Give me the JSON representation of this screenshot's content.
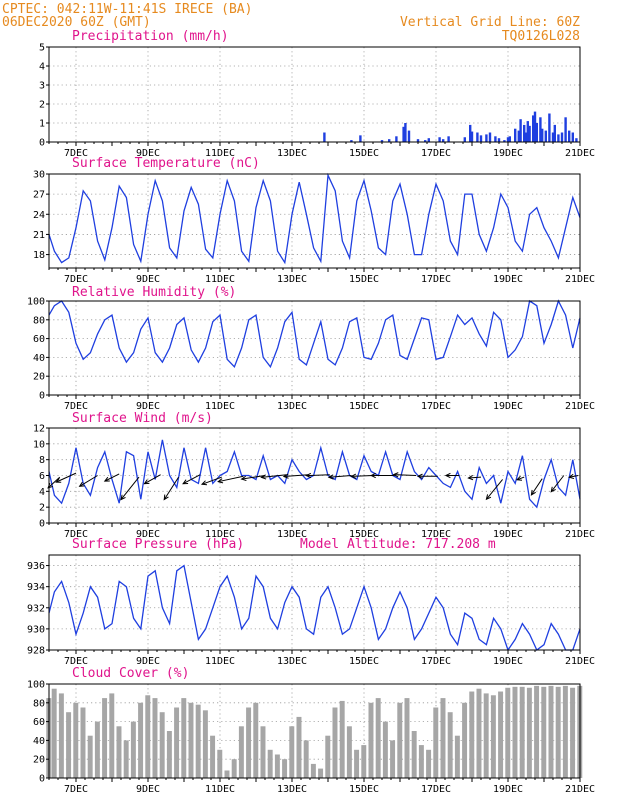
{
  "header": {
    "line1": "CPTEC:  042:11W-11:41S  IRECE (BA)",
    "line2": "06DEC2020 60Z (GMT)",
    "grid_note": "Vertical Grid Line: 60Z",
    "code": "TQ0126L028"
  },
  "colors": {
    "header": "#e68a1f",
    "title": "#e0148c",
    "series": "#1f3fe0",
    "cloud": "#a6a6a6",
    "arrow": "#000000"
  },
  "chart_data": [
    {
      "type": "bar",
      "title": "Precipitation (mm/h)",
      "ylim": [
        0,
        5
      ],
      "yticks": [
        0,
        1,
        2,
        3,
        4,
        5
      ],
      "xlim": [
        6.25,
        21.0
      ],
      "xticks": [
        "7DEC",
        "9DEC",
        "11DEC",
        "13DEC",
        "15DEC",
        "17DEC",
        "19DEC",
        "21DEC"
      ],
      "x": [
        13.9,
        14.65,
        14.9,
        15.5,
        15.7,
        15.9,
        16.1,
        16.15,
        16.25,
        16.5,
        16.7,
        16.8,
        17.1,
        17.2,
        17.35,
        17.8,
        17.95,
        18.0,
        18.15,
        18.25,
        18.4,
        18.5,
        18.65,
        18.75,
        18.9,
        19.0,
        19.05,
        19.2,
        19.3,
        19.35,
        19.45,
        19.5,
        19.55,
        19.6,
        19.7,
        19.75,
        19.8,
        19.9,
        19.95,
        20.05,
        20.15,
        20.25,
        20.3,
        20.4,
        20.5,
        20.6,
        20.7,
        20.8,
        20.9
      ],
      "values": [
        0.5,
        0.1,
        0.35,
        0.1,
        0.15,
        0.3,
        0.8,
        1.0,
        0.6,
        0.15,
        0.1,
        0.2,
        0.25,
        0.15,
        0.3,
        0.25,
        0.9,
        0.55,
        0.5,
        0.35,
        0.4,
        0.5,
        0.3,
        0.2,
        0.1,
        0.25,
        0.3,
        0.7,
        0.6,
        1.2,
        0.9,
        0.5,
        1.1,
        0.85,
        1.4,
        1.6,
        1.0,
        1.3,
        0.7,
        0.6,
        1.5,
        0.5,
        0.9,
        0.4,
        0.5,
        1.3,
        0.6,
        0.5,
        0.2
      ]
    },
    {
      "type": "line",
      "title": "Surface Temperature (nC)",
      "ylim": [
        16,
        30
      ],
      "yticks": [
        18,
        21,
        24,
        27,
        30
      ],
      "xlim": [
        6.25,
        21.0
      ],
      "xticks": [
        "7DEC",
        "9DEC",
        "11DEC",
        "13DEC",
        "15DEC",
        "17DEC",
        "19DEC",
        "21DEC"
      ],
      "x": [
        6.25,
        6.4,
        6.6,
        6.8,
        7.0,
        7.2,
        7.4,
        7.6,
        7.8,
        8.0,
        8.2,
        8.4,
        8.6,
        8.8,
        9.0,
        9.2,
        9.4,
        9.6,
        9.8,
        10.0,
        10.2,
        10.4,
        10.6,
        10.8,
        11.0,
        11.2,
        11.4,
        11.6,
        11.8,
        12.0,
        12.2,
        12.4,
        12.6,
        12.8,
        13.0,
        13.2,
        13.4,
        13.6,
        13.8,
        14.0,
        14.2,
        14.4,
        14.6,
        14.8,
        15.0,
        15.2,
        15.4,
        15.6,
        15.8,
        16.0,
        16.2,
        16.4,
        16.6,
        16.8,
        17.0,
        17.2,
        17.4,
        17.6,
        17.8,
        18.0,
        18.2,
        18.4,
        18.6,
        18.8,
        19.0,
        19.2,
        19.4,
        19.6,
        19.8,
        20.0,
        20.2,
        20.4,
        20.6,
        20.8,
        21.0
      ],
      "values": [
        21.0,
        18.5,
        16.8,
        17.5,
        22.0,
        27.5,
        26.0,
        20.0,
        17.2,
        22.0,
        28.2,
        26.5,
        19.5,
        17.0,
        24.0,
        29.0,
        26.0,
        19.0,
        17.5,
        24.5,
        28.0,
        25.5,
        18.8,
        17.5,
        24.0,
        29.0,
        26.0,
        18.5,
        17.0,
        25.0,
        29.0,
        26.0,
        18.5,
        16.8,
        24.0,
        28.8,
        24.0,
        19.0,
        17.0,
        29.8,
        27.5,
        20.0,
        17.5,
        26.0,
        29.0,
        24.5,
        19.0,
        18.0,
        26.0,
        28.5,
        24.0,
        18.0,
        18.0,
        24.0,
        28.5,
        26.0,
        20.0,
        18.0,
        27.0,
        27.0,
        21.0,
        18.5,
        22.0,
        27.0,
        25.0,
        20.0,
        18.5,
        24.0,
        25.0,
        22.0,
        20.0,
        17.5,
        22.0,
        26.5,
        23.5
      ]
    },
    {
      "type": "line",
      "title": "Relative Humidity (%)",
      "ylim": [
        0,
        100
      ],
      "yticks": [
        0,
        20,
        40,
        60,
        80,
        100
      ],
      "xlim": [
        6.25,
        21.0
      ],
      "xticks": [
        "7DEC",
        "9DEC",
        "11DEC",
        "13DEC",
        "15DEC",
        "17DEC",
        "19DEC",
        "21DEC"
      ],
      "x": [
        6.25,
        6.4,
        6.6,
        6.8,
        7.0,
        7.2,
        7.4,
        7.6,
        7.8,
        8.0,
        8.2,
        8.4,
        8.6,
        8.8,
        9.0,
        9.2,
        9.4,
        9.6,
        9.8,
        10.0,
        10.2,
        10.4,
        10.6,
        10.8,
        11.0,
        11.2,
        11.4,
        11.6,
        11.8,
        12.0,
        12.2,
        12.4,
        12.6,
        12.8,
        13.0,
        13.2,
        13.4,
        13.6,
        13.8,
        14.0,
        14.2,
        14.4,
        14.6,
        14.8,
        15.0,
        15.2,
        15.4,
        15.6,
        15.8,
        16.0,
        16.2,
        16.4,
        16.6,
        16.8,
        17.0,
        17.2,
        17.4,
        17.6,
        17.8,
        18.0,
        18.2,
        18.4,
        18.6,
        18.8,
        19.0,
        19.2,
        19.4,
        19.6,
        19.8,
        20.0,
        20.2,
        20.4,
        20.6,
        20.8,
        21.0
      ],
      "values": [
        85,
        95,
        100,
        88,
        55,
        38,
        45,
        65,
        80,
        85,
        50,
        35,
        45,
        70,
        82,
        45,
        35,
        50,
        75,
        82,
        48,
        35,
        50,
        78,
        85,
        38,
        30,
        50,
        80,
        85,
        40,
        30,
        50,
        78,
        88,
        38,
        32,
        55,
        78,
        38,
        32,
        50,
        78,
        82,
        40,
        38,
        55,
        80,
        85,
        42,
        38,
        60,
        82,
        80,
        38,
        40,
        62,
        85,
        75,
        82,
        65,
        52,
        88,
        80,
        40,
        48,
        62,
        100,
        95,
        55,
        75,
        100,
        85,
        50,
        82
      ]
    },
    {
      "type": "line",
      "title": "Surface Wind (m/s)",
      "ylim": [
        0,
        12
      ],
      "yticks": [
        0,
        2,
        4,
        6,
        8,
        10,
        12
      ],
      "xlim": [
        6.25,
        21.0
      ],
      "xticks": [
        "7DEC",
        "9DEC",
        "11DEC",
        "13DEC",
        "15DEC",
        "17DEC",
        "19DEC",
        "21DEC"
      ],
      "x": [
        6.25,
        6.4,
        6.6,
        6.8,
        7.0,
        7.2,
        7.4,
        7.6,
        7.8,
        8.0,
        8.2,
        8.4,
        8.6,
        8.8,
        9.0,
        9.2,
        9.4,
        9.6,
        9.8,
        10.0,
        10.2,
        10.4,
        10.6,
        10.8,
        11.0,
        11.2,
        11.4,
        11.6,
        11.8,
        12.0,
        12.2,
        12.4,
        12.6,
        12.8,
        13.0,
        13.2,
        13.4,
        13.6,
        13.8,
        14.0,
        14.2,
        14.4,
        14.6,
        14.8,
        15.0,
        15.2,
        15.4,
        15.6,
        15.8,
        16.0,
        16.2,
        16.4,
        16.6,
        16.8,
        17.0,
        17.2,
        17.4,
        17.6,
        17.8,
        18.0,
        18.2,
        18.4,
        18.6,
        18.8,
        19.0,
        19.2,
        19.4,
        19.6,
        19.8,
        20.0,
        20.2,
        20.4,
        20.6,
        20.8,
        21.0
      ],
      "values": [
        6.5,
        3.5,
        2.5,
        5.0,
        9.5,
        5.0,
        3.5,
        7.0,
        9.0,
        5.5,
        2.5,
        9.0,
        8.5,
        3.0,
        9.0,
        5.5,
        10.5,
        6.0,
        4.5,
        9.5,
        5.5,
        5.0,
        9.5,
        5.0,
        6.0,
        6.5,
        9.0,
        6.0,
        6.0,
        5.5,
        8.5,
        5.5,
        6.0,
        5.0,
        8.0,
        6.5,
        5.5,
        6.0,
        9.5,
        6.0,
        5.5,
        9.0,
        6.0,
        5.5,
        8.5,
        6.5,
        6.0,
        9.0,
        6.0,
        5.5,
        9.0,
        6.5,
        5.5,
        7.0,
        6.0,
        5.0,
        4.5,
        6.5,
        4.0,
        3.0,
        7.0,
        5.0,
        6.0,
        2.5,
        6.5,
        5.0,
        8.5,
        3.0,
        2.0,
        5.5,
        8.0,
        4.5,
        3.5,
        8.0,
        3.0
      ],
      "wind_arrows": [
        {
          "x": 6.55,
          "y": 5.8,
          "u": -1.3,
          "v": -1.2
        },
        {
          "x": 7.0,
          "y": 6.3,
          "u": -2.2,
          "v": -1.0
        },
        {
          "x": 7.6,
          "y": 6.0,
          "u": -2.0,
          "v": -1.2
        },
        {
          "x": 8.2,
          "y": 6.2,
          "u": -1.6,
          "v": -0.8
        },
        {
          "x": 8.75,
          "y": 5.8,
          "u": -2.0,
          "v": -2.5
        },
        {
          "x": 9.35,
          "y": 6.1,
          "u": -1.8,
          "v": -1.0
        },
        {
          "x": 9.85,
          "y": 5.8,
          "u": -1.6,
          "v": -2.5
        },
        {
          "x": 10.45,
          "y": 6.1,
          "u": -1.9,
          "v": -1.0
        },
        {
          "x": 11.05,
          "y": 5.8,
          "u": -2.2,
          "v": -0.8
        },
        {
          "x": 11.65,
          "y": 5.9,
          "u": -2.8,
          "v": -0.6
        },
        {
          "x": 12.25,
          "y": 6.0,
          "u": -2.6,
          "v": -0.4
        },
        {
          "x": 12.85,
          "y": 6.1,
          "u": -2.8,
          "v": -0.3
        },
        {
          "x": 13.45,
          "y": 6.1,
          "u": -2.7,
          "v": -0.2
        },
        {
          "x": 14.05,
          "y": 6.1,
          "u": -2.6,
          "v": -0.1
        },
        {
          "x": 14.65,
          "y": 6.0,
          "u": -2.5,
          "v": -0.2
        },
        {
          "x": 15.25,
          "y": 6.0,
          "u": -2.4,
          "v": -0.1
        },
        {
          "x": 15.85,
          "y": 6.0,
          "u": -2.6,
          "v": 0.0
        },
        {
          "x": 16.45,
          "y": 6.0,
          "u": -2.5,
          "v": 0.1
        },
        {
          "x": 17.05,
          "y": 5.9,
          "u": -2.2,
          "v": 0.0
        },
        {
          "x": 17.65,
          "y": 6.0,
          "u": -1.5,
          "v": 0.0
        },
        {
          "x": 18.25,
          "y": 5.8,
          "u": -1.4,
          "v": -0.1
        },
        {
          "x": 18.85,
          "y": 5.5,
          "u": -1.8,
          "v": -2.2
        },
        {
          "x": 19.45,
          "y": 5.8,
          "u": -0.8,
          "v": -0.3
        },
        {
          "x": 19.95,
          "y": 5.6,
          "u": -1.2,
          "v": -1.8
        },
        {
          "x": 20.55,
          "y": 6.0,
          "u": -1.4,
          "v": -1.8
        },
        {
          "x": 20.95,
          "y": 6.0,
          "u": -1.0,
          "v": -0.2
        }
      ]
    },
    {
      "type": "line",
      "title": "Surface Pressure (hPa)",
      "annotation": "Model Altitude: 717.208 m",
      "ylim": [
        928,
        937
      ],
      "yticks": [
        928,
        930,
        932,
        934,
        936
      ],
      "xlim": [
        6.25,
        21.0
      ],
      "xticks": [
        "7DEC",
        "9DEC",
        "11DEC",
        "13DEC",
        "15DEC",
        "17DEC",
        "19DEC",
        "21DEC"
      ],
      "x": [
        6.25,
        6.4,
        6.6,
        6.8,
        7.0,
        7.2,
        7.4,
        7.6,
        7.8,
        8.0,
        8.2,
        8.4,
        8.6,
        8.8,
        9.0,
        9.2,
        9.4,
        9.6,
        9.8,
        10.0,
        10.2,
        10.4,
        10.6,
        10.8,
        11.0,
        11.2,
        11.4,
        11.6,
        11.8,
        12.0,
        12.2,
        12.4,
        12.6,
        12.8,
        13.0,
        13.2,
        13.4,
        13.6,
        13.8,
        14.0,
        14.2,
        14.4,
        14.6,
        14.8,
        15.0,
        15.2,
        15.4,
        15.6,
        15.8,
        16.0,
        16.2,
        16.4,
        16.6,
        16.8,
        17.0,
        17.2,
        17.4,
        17.6,
        17.8,
        18.0,
        18.2,
        18.4,
        18.6,
        18.8,
        19.0,
        19.2,
        19.4,
        19.6,
        19.8,
        20.0,
        20.2,
        20.4,
        20.6,
        20.8,
        21.0
      ],
      "values": [
        931.5,
        933.5,
        934.5,
        932.5,
        929.5,
        931.5,
        934.0,
        933.0,
        930.0,
        930.5,
        934.5,
        934.0,
        931.0,
        930.0,
        935.0,
        935.5,
        932.0,
        930.5,
        935.5,
        936.0,
        932.5,
        929.0,
        930.0,
        932.0,
        934.0,
        935.0,
        933.0,
        930.0,
        931.0,
        935.0,
        934.0,
        931.0,
        930.0,
        932.5,
        934.0,
        933.0,
        930.0,
        929.5,
        933.0,
        934.0,
        932.0,
        929.5,
        930.0,
        932.0,
        934.0,
        932.0,
        929.0,
        930.0,
        932.0,
        933.5,
        932.0,
        929.0,
        930.0,
        931.5,
        933.0,
        932.0,
        929.5,
        928.5,
        931.5,
        931.0,
        929.0,
        928.5,
        931.0,
        930.0,
        928.0,
        929.0,
        930.5,
        929.5,
        928.0,
        928.5,
        930.5,
        929.5,
        928.0,
        928.0,
        930.0
      ]
    },
    {
      "type": "bar",
      "title": "Cloud Cover (%)",
      "ylim": [
        0,
        100
      ],
      "yticks": [
        0,
        20,
        40,
        60,
        80,
        100
      ],
      "xlim": [
        6.25,
        21.0
      ],
      "xticks": [
        "7DEC",
        "9DEC",
        "11DEC",
        "13DEC",
        "15DEC",
        "17DEC",
        "19DEC",
        "21DEC"
      ],
      "x": [
        6.25,
        6.4,
        6.6,
        6.8,
        7.0,
        7.2,
        7.4,
        7.6,
        7.8,
        8.0,
        8.2,
        8.4,
        8.6,
        8.8,
        9.0,
        9.2,
        9.4,
        9.6,
        9.8,
        10.0,
        10.2,
        10.4,
        10.6,
        10.8,
        11.0,
        11.2,
        11.4,
        11.6,
        11.8,
        12.0,
        12.2,
        12.4,
        12.6,
        12.8,
        13.0,
        13.2,
        13.4,
        13.6,
        13.8,
        14.0,
        14.2,
        14.4,
        14.6,
        14.8,
        15.0,
        15.2,
        15.4,
        15.6,
        15.8,
        16.0,
        16.2,
        16.4,
        16.6,
        16.8,
        17.0,
        17.2,
        17.4,
        17.6,
        17.8,
        18.0,
        18.2,
        18.4,
        18.6,
        18.8,
        19.0,
        19.2,
        19.4,
        19.6,
        19.8,
        20.0,
        20.2,
        20.4,
        20.6,
        20.8,
        21.0
      ],
      "values": [
        85,
        95,
        90,
        70,
        80,
        75,
        45,
        60,
        85,
        90,
        55,
        40,
        60,
        80,
        88,
        85,
        70,
        50,
        75,
        85,
        80,
        78,
        72,
        45,
        30,
        8,
        20,
        55,
        75,
        80,
        55,
        30,
        25,
        20,
        55,
        65,
        40,
        15,
        10,
        45,
        75,
        82,
        55,
        30,
        35,
        80,
        85,
        60,
        40,
        80,
        85,
        50,
        35,
        30,
        75,
        85,
        70,
        45,
        80,
        92,
        95,
        90,
        88,
        92,
        96,
        97,
        97,
        96,
        98,
        97,
        98,
        97,
        98,
        96,
        98
      ]
    }
  ]
}
